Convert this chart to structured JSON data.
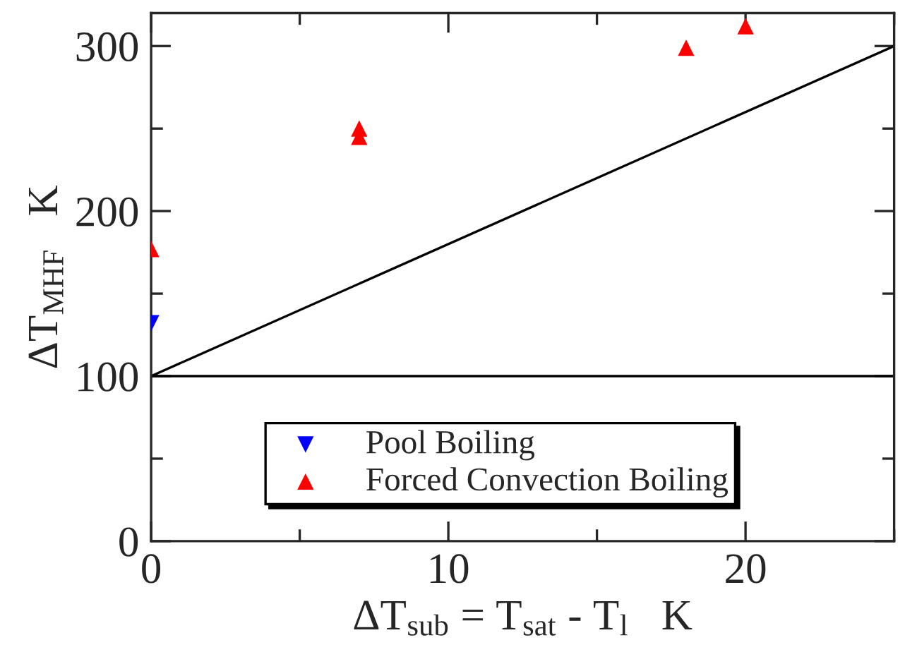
{
  "chart_data": {
    "type": "scatter",
    "xlabel": "ΔT$_{sub}$ = T$_{sat}$ - T$_{l}$   K",
    "ylabel": "ΔT$_{MHF}$   K",
    "xlim": [
      0,
      25
    ],
    "xticks": [
      0,
      {
        "value": 5,
        "label": null
      },
      10,
      {
        "value": 15,
        "label": null
      },
      20,
      {
        "value": 25,
        "label": null
      }
    ],
    "ylim": [
      0,
      320
    ],
    "yticks": [
      0,
      {
        "value": 50,
        "label": null
      },
      100,
      {
        "value": 150,
        "label": null
      },
      200,
      {
        "value": 250,
        "label": null
      },
      300
    ],
    "grid": false,
    "legend": "bottom",
    "series": [
      {
        "name": "Pool Boiling",
        "color": "#0000ff",
        "marker": "triangle_down",
        "x": [
          0
        ],
        "values": [
          132
        ]
      },
      {
        "name": "Forced Convection Boiling",
        "color": "#ff0000",
        "marker": "triangle",
        "x": [
          0,
          7,
          7,
          18,
          20
        ],
        "values": [
          177,
          250,
          245,
          299,
          312
        ]
      },
      {
        "type": "line",
        "color": "#000000",
        "marker": "none",
        "x": [
          0,
          25
        ],
        "values": [
          100,
          300
        ]
      }
    ],
    "ref_lines": [
      {
        "axis": "y",
        "value": 100,
        "color": "#000000"
      }
    ]
  }
}
